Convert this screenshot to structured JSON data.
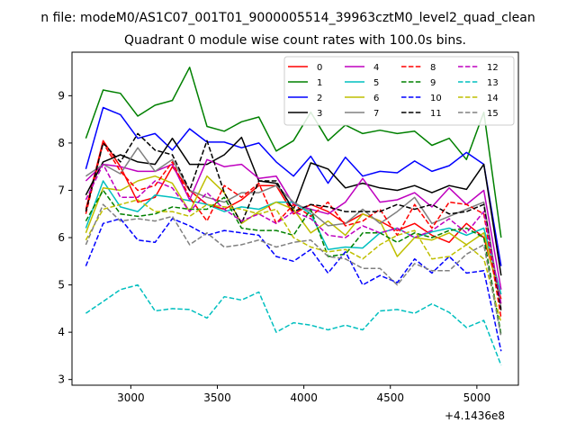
{
  "chart_data": {
    "type": "line",
    "suptitle": "n file: modeM0/AS1C07_001T01_9000005514_39963cztM0_level2_quad_clean",
    "title": "Quadrant 0 module wise count rates with 100.0s bins.",
    "xlabel": "",
    "ylabel": "",
    "x_offset_label": "+4.1436e8",
    "xlim": [
      2660,
      5240
    ],
    "ylim": [
      2.88,
      9.92
    ],
    "xticks": [
      3000,
      3500,
      4000,
      4500,
      5000
    ],
    "yticks": [
      3,
      4,
      5,
      6,
      7,
      8,
      9
    ],
    "legend_position": "top-right",
    "x": [
      2740,
      2840,
      2940,
      3040,
      3140,
      3240,
      3340,
      3440,
      3540,
      3640,
      3740,
      3840,
      3940,
      4040,
      4140,
      4240,
      4340,
      4440,
      4540,
      4640,
      4740,
      4840,
      4940,
      5040,
      5140
    ],
    "series": [
      {
        "name": "0",
        "color": "#ff0000",
        "dash": "solid",
        "values": [
          6.6,
          8.05,
          7.5,
          6.75,
          6.85,
          7.5,
          7.0,
          6.7,
          6.6,
          6.8,
          7.1,
          7.1,
          6.5,
          6.7,
          6.55,
          6.3,
          6.5,
          6.35,
          6.15,
          6.3,
          6.05,
          5.9,
          6.3,
          6.0,
          4.7
        ]
      },
      {
        "name": "1",
        "color": "#008000",
        "dash": "solid",
        "values": [
          8.1,
          9.12,
          9.05,
          8.57,
          8.8,
          8.9,
          9.6,
          8.35,
          8.25,
          8.45,
          8.55,
          7.83,
          8.05,
          8.65,
          8.05,
          8.38,
          8.2,
          8.27,
          8.2,
          8.25,
          7.95,
          8.1,
          7.65,
          8.65,
          6.0
        ]
      },
      {
        "name": "2",
        "color": "#0000ff",
        "dash": "solid",
        "values": [
          7.45,
          8.75,
          8.6,
          8.1,
          8.2,
          7.85,
          8.3,
          8.02,
          8.02,
          7.9,
          8.0,
          7.6,
          7.3,
          7.72,
          7.15,
          7.7,
          7.3,
          7.4,
          7.37,
          7.62,
          7.4,
          7.52,
          7.8,
          7.55,
          5.4
        ]
      },
      {
        "name": "3",
        "color": "#000000",
        "dash": "solid",
        "values": [
          6.9,
          7.6,
          7.75,
          7.6,
          7.55,
          8.1,
          7.55,
          7.55,
          7.75,
          8.12,
          7.2,
          7.15,
          6.6,
          7.58,
          7.45,
          7.05,
          7.15,
          7.05,
          7.0,
          7.1,
          6.95,
          7.1,
          7.02,
          7.55,
          5.2
        ]
      },
      {
        "name": "4",
        "color": "#bf00bf",
        "dash": "solid",
        "values": [
          7.2,
          7.55,
          7.5,
          7.4,
          7.4,
          7.55,
          6.8,
          7.65,
          7.5,
          7.55,
          7.25,
          7.3,
          6.7,
          6.6,
          6.5,
          6.75,
          7.25,
          6.75,
          6.8,
          6.95,
          6.65,
          7.05,
          6.7,
          7.0,
          4.9
        ]
      },
      {
        "name": "5",
        "color": "#00bfbf",
        "dash": "solid",
        "values": [
          6.2,
          7.2,
          6.65,
          6.55,
          6.9,
          6.85,
          6.78,
          6.7,
          6.55,
          6.65,
          6.6,
          6.75,
          6.75,
          6.5,
          5.75,
          5.8,
          5.78,
          6.1,
          6.2,
          6.0,
          6.12,
          6.2,
          6.05,
          6.2,
          4.8
        ]
      },
      {
        "name": "6",
        "color": "#bfbf00",
        "dash": "solid",
        "values": [
          6.1,
          7.05,
          7.0,
          7.2,
          7.3,
          7.15,
          6.55,
          7.3,
          6.95,
          6.3,
          6.55,
          6.75,
          6.6,
          6.1,
          6.35,
          6.05,
          6.5,
          6.35,
          5.6,
          6.0,
          5.95,
          6.1,
          5.85,
          6.1,
          4.6
        ]
      },
      {
        "name": "7",
        "color": "#808080",
        "dash": "solid",
        "values": [
          7.3,
          7.55,
          7.35,
          7.9,
          7.4,
          7.65,
          7.0,
          6.85,
          6.75,
          6.95,
          6.95,
          7.1,
          6.75,
          6.55,
          6.25,
          6.3,
          6.6,
          6.3,
          6.55,
          6.85,
          6.3,
          6.45,
          6.6,
          6.75,
          4.5
        ]
      },
      {
        "name": "8",
        "color": "#ff0000",
        "dash": "dashed",
        "values": [
          6.5,
          8.0,
          7.4,
          7.0,
          7.1,
          7.6,
          6.85,
          6.35,
          7.1,
          6.85,
          7.15,
          6.3,
          6.7,
          6.45,
          6.75,
          6.25,
          6.35,
          6.6,
          6.05,
          6.7,
          6.2,
          6.75,
          6.7,
          6.5,
          4.3
        ]
      },
      {
        "name": "9",
        "color": "#008000",
        "dash": "dashed",
        "values": [
          6.35,
          7.0,
          6.5,
          6.45,
          6.5,
          6.65,
          6.6,
          6.6,
          6.85,
          6.2,
          6.15,
          6.15,
          6.05,
          6.6,
          5.6,
          5.65,
          6.1,
          6.1,
          5.9,
          6.1,
          6.0,
          6.15,
          6.2,
          6.0,
          3.95
        ]
      },
      {
        "name": "10",
        "color": "#0000ff",
        "dash": "dashed",
        "values": [
          5.4,
          6.3,
          6.4,
          5.95,
          5.9,
          6.4,
          6.25,
          6.05,
          6.15,
          6.1,
          6.05,
          5.6,
          5.5,
          5.75,
          5.25,
          5.7,
          5.0,
          5.2,
          5.05,
          5.55,
          5.25,
          5.6,
          5.25,
          5.3,
          3.6
        ]
      },
      {
        "name": "11",
        "color": "#000000",
        "dash": "dashed",
        "values": [
          6.55,
          8.0,
          7.6,
          8.2,
          7.85,
          7.75,
          7.0,
          8.05,
          6.95,
          6.3,
          7.2,
          7.2,
          6.55,
          6.7,
          6.65,
          6.55,
          6.55,
          6.55,
          6.7,
          6.6,
          6.7,
          6.5,
          6.55,
          6.7,
          4.45
        ]
      },
      {
        "name": "12",
        "color": "#bf00bf",
        "dash": "dashed",
        "values": [
          6.8,
          7.55,
          6.85,
          6.85,
          7.2,
          7.05,
          6.55,
          6.95,
          6.6,
          6.35,
          6.5,
          6.3,
          6.55,
          6.4,
          6.05,
          6.0,
          6.25,
          6.1,
          6.2,
          6.0,
          6.15,
          6.4,
          6.1,
          6.55,
          4.6
        ]
      },
      {
        "name": "13",
        "color": "#00bfbf",
        "dash": "dashed",
        "values": [
          4.4,
          4.65,
          4.9,
          5.0,
          4.45,
          4.5,
          4.48,
          4.3,
          4.75,
          4.68,
          4.85,
          4.0,
          4.2,
          4.15,
          4.05,
          4.15,
          4.05,
          4.45,
          4.48,
          4.4,
          4.6,
          4.42,
          4.1,
          4.25,
          3.3
        ]
      },
      {
        "name": "14",
        "color": "#bfbf00",
        "dash": "dashed",
        "values": [
          5.95,
          6.6,
          6.7,
          6.8,
          6.55,
          6.55,
          6.45,
          6.7,
          6.65,
          6.6,
          6.5,
          6.6,
          6.0,
          5.8,
          5.7,
          5.75,
          5.55,
          5.85,
          6.05,
          6.15,
          5.55,
          5.6,
          5.85,
          5.55,
          4.2
        ]
      },
      {
        "name": "15",
        "color": "#808080",
        "dash": "dashed",
        "values": [
          5.85,
          6.7,
          6.35,
          6.4,
          6.35,
          6.45,
          5.85,
          6.1,
          5.8,
          5.85,
          5.95,
          5.8,
          5.9,
          5.95,
          5.6,
          5.55,
          5.35,
          5.35,
          5.0,
          5.45,
          5.3,
          5.3,
          5.65,
          5.85,
          3.9
        ]
      }
    ]
  }
}
